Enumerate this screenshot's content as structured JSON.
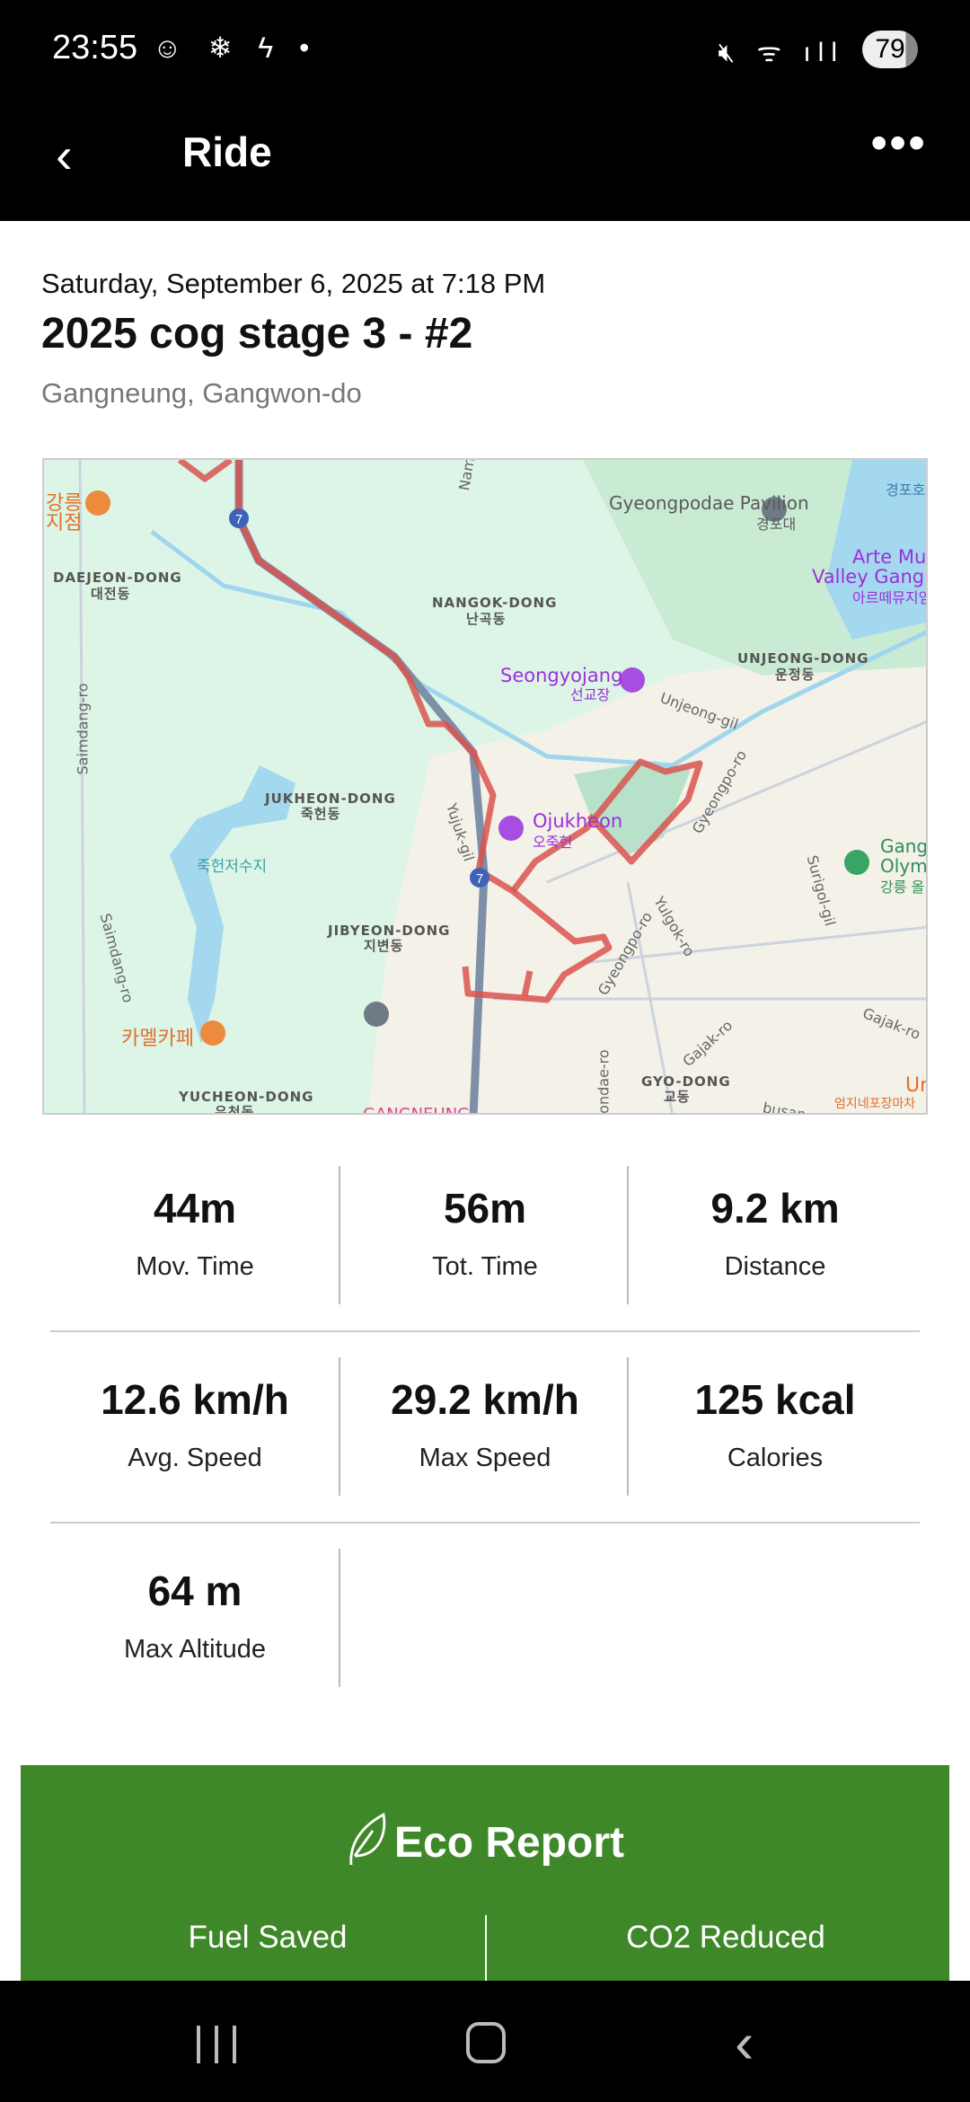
{
  "status_bar": {
    "time": "23:55",
    "battery": "79"
  },
  "header": {
    "title": "Ride"
  },
  "activity": {
    "date": "Saturday, September 6, 2025 at 7:18 PM",
    "name": "2025 cog stage 3 - #2",
    "location": "Gangneung, Gangwon-do"
  },
  "map": {
    "route_color": "#d9534f",
    "highway_badge": "7",
    "labels": [
      "Gyeongpodae Pavilion",
      "경포대",
      "경포호",
      "Arte Mus",
      "Valley Gangne",
      "아르떼뮤지엄",
      "강릉",
      "지점",
      "DAEJEON-DONG",
      "대전동",
      "NANGOK-DONG",
      "난곡동",
      "Seongyojang",
      "선교장",
      "UNJEONG-DONG",
      "운정동",
      "Unjeong-gil",
      "Saimdang-ro",
      "JUKHEON-DONG",
      "죽헌동",
      "Yujuk-gil",
      "Ojukheon",
      "오죽헌",
      "Gyeongpo-ro",
      "죽헌저수지",
      "Saimdang-ro",
      "Surigol-gil",
      "Gangu",
      "Olymp",
      "강릉 올",
      "JIBYEON-DONG",
      "지변동",
      "Yulgok-ro",
      "Gyeongpo-ro",
      "Gajak-ro",
      "Gajak-ro",
      "카멜카페",
      "Wondae-ro",
      "GYO-DONG",
      "교동",
      "YUCHEON-DONG",
      "유천동",
      "GANGNEUNG",
      "Um",
      "엄지네포장마차",
      "Nam",
      "busan-"
    ]
  },
  "stats": [
    {
      "value": "44m",
      "label": "Mov. Time"
    },
    {
      "value": "56m",
      "label": "Tot. Time"
    },
    {
      "value": "9.2 km",
      "label": "Distance"
    },
    {
      "value": "12.6 km/h",
      "label": "Avg. Speed"
    },
    {
      "value": "29.2 km/h",
      "label": "Max Speed"
    },
    {
      "value": "125 kcal",
      "label": "Calories"
    },
    {
      "value": "64 m",
      "label": "Max Altitude"
    }
  ],
  "eco": {
    "title": "Eco Report",
    "fuel_label": "Fuel Saved",
    "co2_label": "CO2 Reduced",
    "color": "#3f882a"
  }
}
